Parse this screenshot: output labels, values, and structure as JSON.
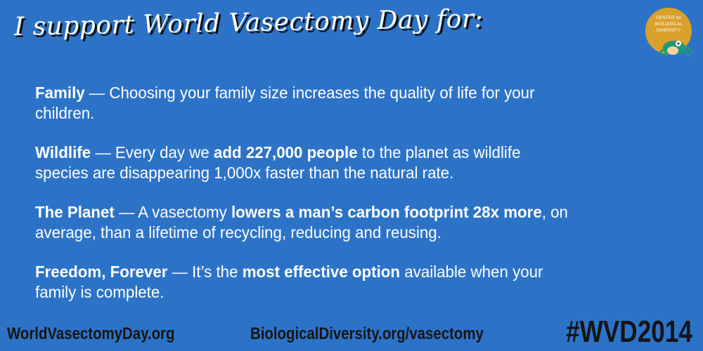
{
  "title": "I support World Vasectomy Day for:",
  "logo": {
    "text": "CENTER for BIOLOGICAL DIVERSITY",
    "circle_color": "#d9a12a",
    "frog_color": "#1f9a77"
  },
  "background_color": "#2c73c8",
  "reasons": [
    {
      "heading": "Family",
      "l1a": " — Choosing your family size increases the quality of life for your",
      "l2": "children."
    },
    {
      "heading": "Wildlife",
      "l1a": " — Every day we ",
      "bold": "add 227,000 people",
      "l1b": " to the planet as wildlife",
      "l2": "species are disappearing 1,000x faster than the natural rate."
    },
    {
      "heading": "The Planet",
      "l1a": " — A vasectomy ",
      "bold": "lowers a man’s carbon footprint 28x more",
      "l1b": ", on",
      "l2": "average, than a lifetime of recycling, reducing and reusing."
    },
    {
      "heading": "Freedom, Forever",
      "l1a": " — It’s the ",
      "bold": "most effective option",
      "l1b": " available when your",
      "l2": "family is complete."
    }
  ],
  "footer": {
    "link1": "WorldVasectomyDay.org",
    "link2": "BiologicalDiversity.org/vasectomy",
    "hashtag": "#WVD2014"
  }
}
